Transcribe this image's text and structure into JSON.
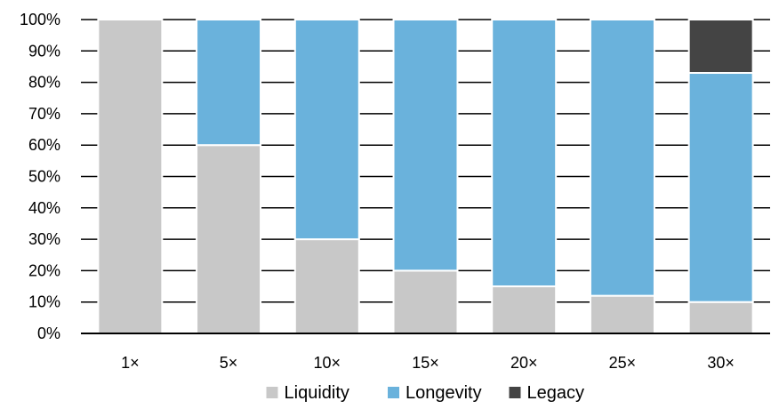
{
  "chart_data": {
    "type": "bar",
    "stacked": true,
    "categories": [
      "1×",
      "5×",
      "10×",
      "15×",
      "20×",
      "25×",
      "30×"
    ],
    "series": [
      {
        "name": "Liquidity",
        "color": "#c8c8c8",
        "values": [
          100,
          60,
          30,
          20,
          15,
          12,
          10
        ]
      },
      {
        "name": "Longevity",
        "color": "#6ab2dc",
        "values": [
          0,
          40,
          70,
          80,
          85,
          88,
          73
        ]
      },
      {
        "name": "Legacy",
        "color": "#444444",
        "values": [
          0,
          0,
          0,
          0,
          0,
          0,
          17
        ]
      }
    ],
    "y_ticks": [
      "0%",
      "10%",
      "20%",
      "30%",
      "40%",
      "50%",
      "60%",
      "70%",
      "80%",
      "90%",
      "100%"
    ],
    "ylim": [
      0,
      100
    ],
    "grid": true,
    "legend_position": "bottom",
    "title": "",
    "xlabel": "",
    "ylabel": ""
  }
}
